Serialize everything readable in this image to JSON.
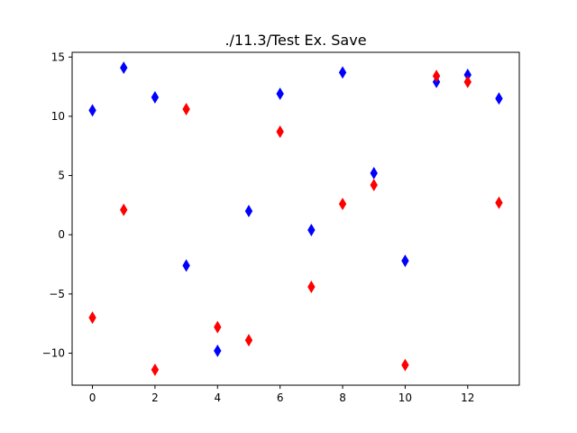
{
  "chart_data": {
    "type": "scatter",
    "title": "./11.3/Test Ex. Save",
    "xlabel": "",
    "ylabel": "",
    "xlim": [
      -0.65,
      13.65
    ],
    "ylim": [
      -12.7,
      15.4
    ],
    "xticks": [
      0,
      2,
      4,
      6,
      8,
      10,
      12
    ],
    "yticks": [
      -10,
      -5,
      0,
      5,
      10,
      15
    ],
    "grid": false,
    "marker": "thin_diamond",
    "x": [
      0,
      1,
      2,
      3,
      4,
      5,
      6,
      7,
      8,
      9,
      10,
      11,
      12,
      13
    ],
    "series": [
      {
        "color": "#0000ff",
        "values": [
          10.5,
          14.1,
          11.6,
          -2.6,
          -9.8,
          2.0,
          11.9,
          0.4,
          13.7,
          5.2,
          -2.2,
          12.9,
          13.5,
          11.5
        ]
      },
      {
        "color": "#ff0000",
        "values": [
          -7.0,
          2.1,
          -11.4,
          10.6,
          -7.8,
          -8.9,
          8.7,
          -4.4,
          2.6,
          4.2,
          -11.0,
          13.4,
          12.9,
          2.7
        ]
      }
    ]
  }
}
